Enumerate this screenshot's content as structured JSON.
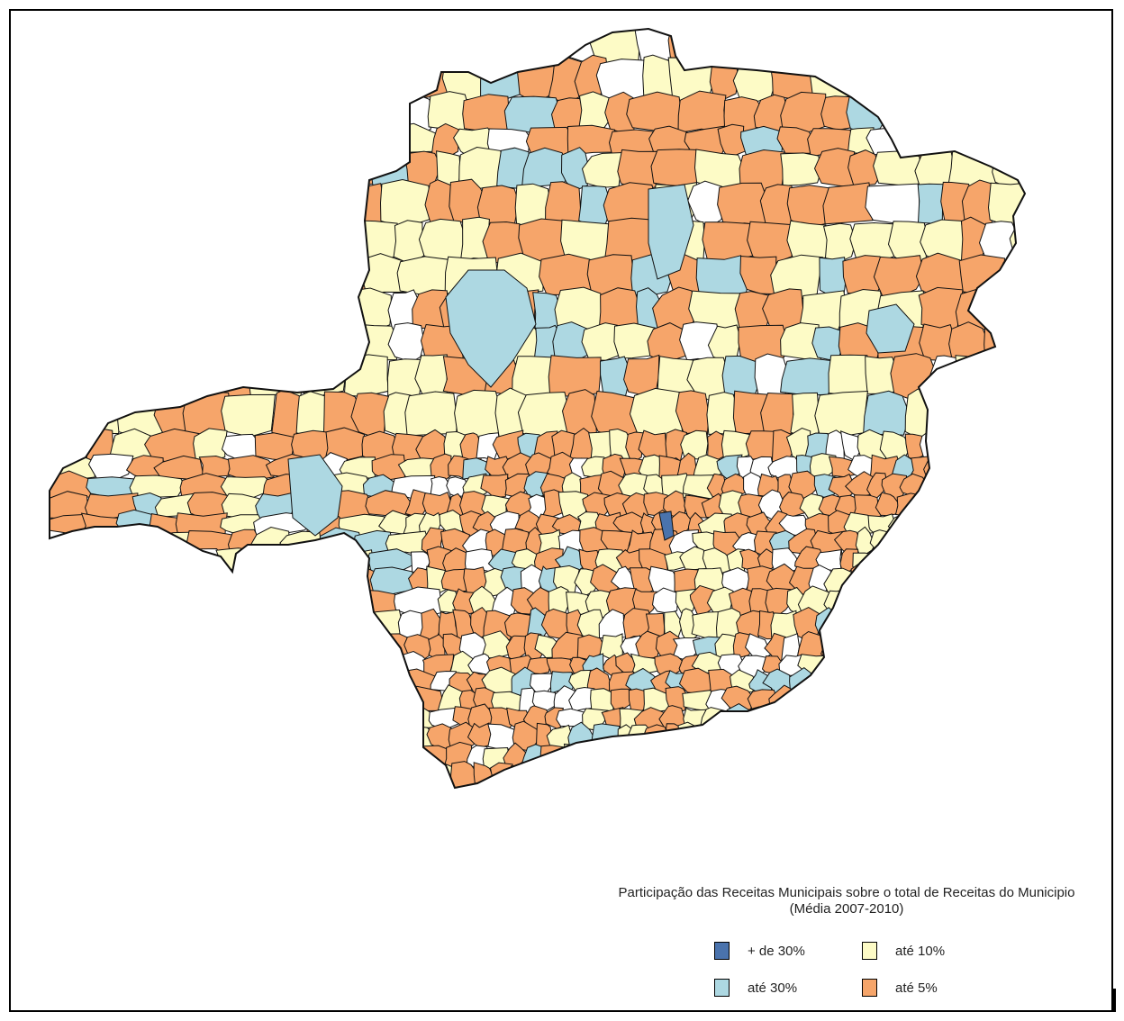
{
  "legend": {
    "title_line1": "Participação das Receitas Municipais sobre o total de Receitas do Municipio",
    "title_line2": "(Média 2007-2010)",
    "classes": [
      {
        "label": "+ de 30%",
        "color": "#4a73ad"
      },
      {
        "label": "até 10%",
        "color": "#fdfbc6"
      },
      {
        "label": "até 30%",
        "color": "#add8e2"
      },
      {
        "label": "até 5%",
        "color": "#f6a56a"
      }
    ]
  },
  "colors": {
    "no_data": "#ffffff",
    "border": "#111111"
  }
}
